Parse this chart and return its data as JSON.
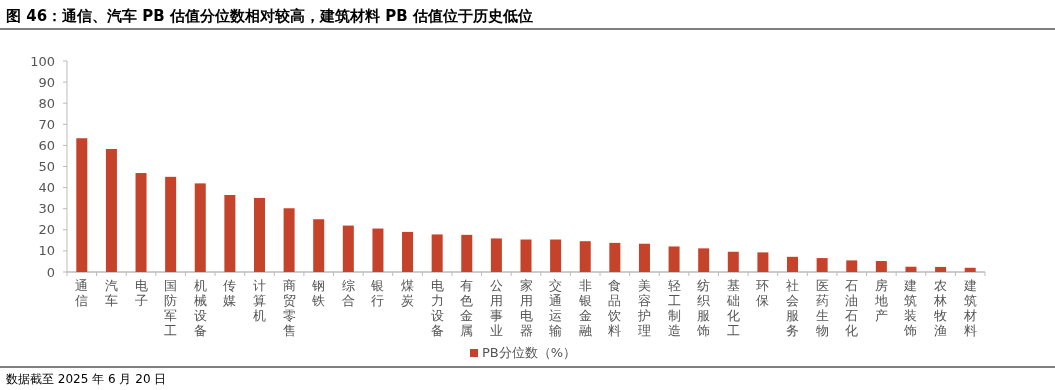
{
  "chart_data": {
    "type": "bar",
    "title": "图 46：通信、汽车 PB 估值分位数相对较高，建筑材料 PB 估值位于历史低位",
    "categories": [
      "通信",
      "汽车",
      "电子",
      "国防军工",
      "机械设备",
      "传媒",
      "计算机",
      "商贸零售",
      "钢铁",
      "综合",
      "银行",
      "煤炭",
      "电力设备",
      "有色金属",
      "公用事业",
      "家用电器",
      "交通运输",
      "非银金融",
      "食品饮料",
      "美容护理",
      "轻工制造",
      "纺织服饰",
      "基础化工",
      "环保",
      "社会服务",
      "医药生物",
      "石油石化",
      "房地产",
      "建筑装饰",
      "农林牧渔",
      "建筑材料"
    ],
    "series": [
      {
        "name": "PB分位数（%）",
        "color": "#c5432a",
        "values": [
          63.4,
          58.3,
          46.9,
          45.1,
          42.0,
          36.5,
          35.1,
          30.2,
          25.0,
          22.0,
          20.6,
          19.0,
          17.8,
          17.6,
          15.9,
          15.4,
          15.4,
          14.6,
          13.8,
          13.4,
          12.1,
          11.2,
          9.6,
          9.3,
          7.2,
          6.6,
          5.5,
          5.2,
          2.5,
          2.4,
          2.0
        ]
      }
    ],
    "ylim": [
      0,
      100
    ],
    "yticks": [
      0,
      10,
      20,
      30,
      40,
      50,
      60,
      70,
      80,
      90,
      100
    ],
    "legend": "bottom",
    "grid": false,
    "annotations": [
      "数据截至 2025 年 6 月 20 日"
    ]
  }
}
